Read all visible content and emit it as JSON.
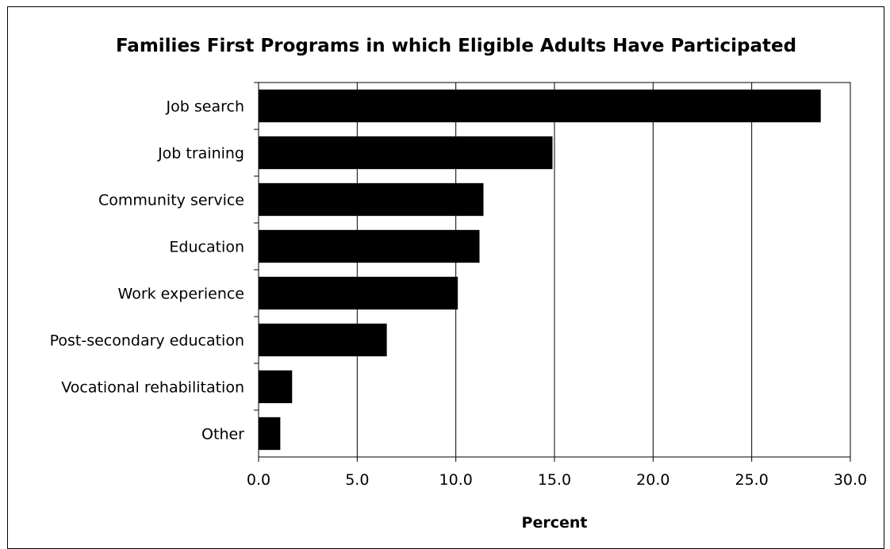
{
  "chart_data": {
    "type": "bar",
    "orientation": "horizontal",
    "title": "Families First Programs in which Eligible Adults Have Participated",
    "xlabel": "Percent",
    "ylabel": "",
    "categories": [
      "Job search",
      "Job training",
      "Community service",
      "Education",
      "Work experience",
      "Post-secondary education",
      "Vocational rehabilitation",
      "Other"
    ],
    "values": [
      28.5,
      14.9,
      11.4,
      11.2,
      10.1,
      6.5,
      1.7,
      1.1
    ],
    "xlim": [
      0,
      30
    ],
    "xticks": [
      "0.0",
      "5.0",
      "10.0",
      "15.0",
      "20.0",
      "25.0",
      "30.0"
    ],
    "grid": "vertical",
    "legend": "none",
    "bar_color": "#000000"
  }
}
